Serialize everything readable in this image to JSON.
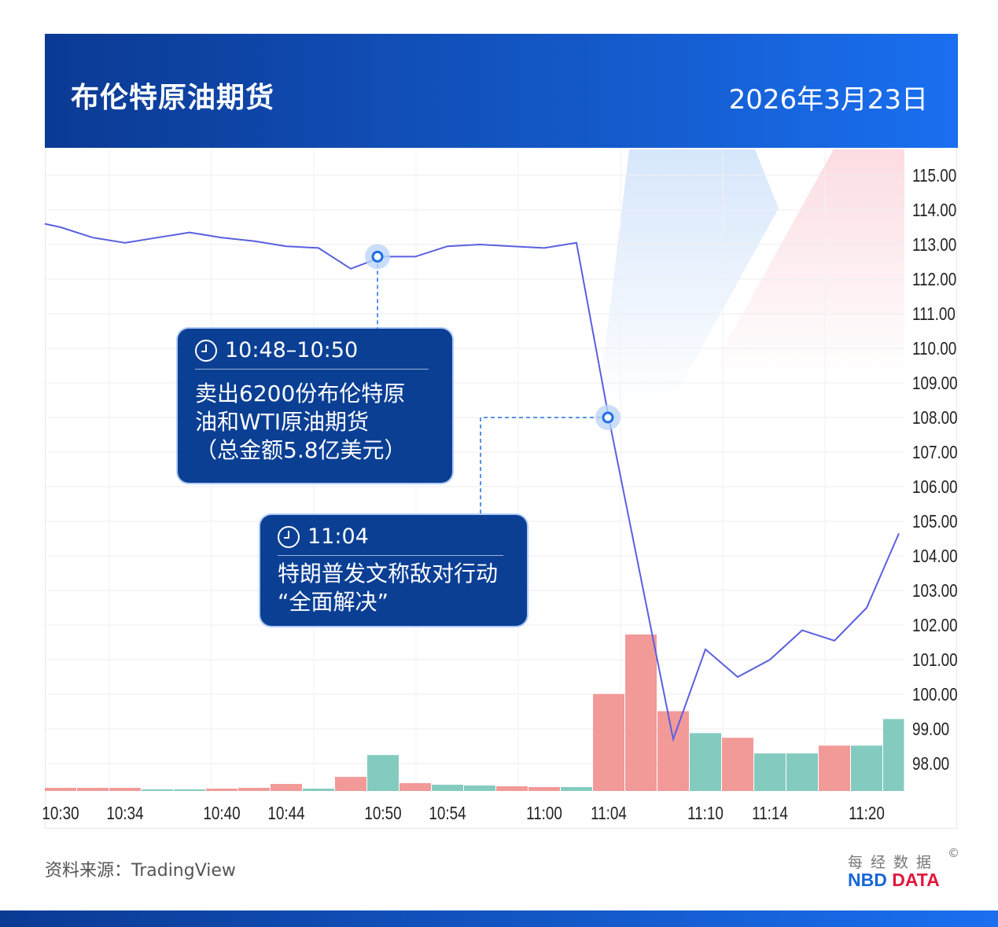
{
  "header": {
    "title": "布伦特原油期货",
    "date": "2026年3月23日"
  },
  "callouts": [
    {
      "time": "10:48–10:50",
      "text": "卖出6200份布伦特原\n油和WTI原油期货\n（总金额5.8亿美元）",
      "anchor": {
        "time": "10:50",
        "price": 112.65
      }
    },
    {
      "time": "11:04",
      "text": "特朗普发文称敌对行动\n“全面解决”",
      "anchor": {
        "time": "11:04",
        "price": 108.0
      }
    }
  ],
  "footer": {
    "source": "资料来源：TradingView",
    "brand_cn": "每经数据",
    "brand_en_1": "NBD",
    "brand_en_2": "DATA",
    "copyright": "©"
  },
  "colors": {
    "header": "#0b3a93",
    "line": "#5a5fe0",
    "up_bar": "#f29a98",
    "down_bar": "#84cbbf",
    "callout": "#0b3f94",
    "marker": "#1e6fe6"
  },
  "chart_data": {
    "type": "line",
    "title": "布伦特原油期货",
    "ylim": [
      97,
      115.5
    ],
    "y_ticks": [
      "115.00",
      "114.00",
      "113.00",
      "112.00",
      "111.00",
      "110.00",
      "109.00",
      "108.00",
      "107.00",
      "106.00",
      "105.00",
      "104.00",
      "103.00",
      "102.00",
      "101.00",
      "100.00",
      "99.00",
      "98.00"
    ],
    "x_ticks": [
      "10:30",
      "10:34",
      "10:40",
      "10:44",
      "10:50",
      "10:54",
      "11:00",
      "11:04",
      "11:10",
      "11:14",
      "11:20"
    ],
    "grid": true,
    "series": [
      {
        "type": "line",
        "x": [
          "10:29",
          "10:30",
          "10:32",
          "10:34",
          "10:36",
          "10:38",
          "10:40",
          "10:42",
          "10:44",
          "10:46",
          "10:48",
          "10:50",
          "10:52",
          "10:54",
          "10:56",
          "10:58",
          "11:00",
          "11:02",
          "11:04",
          "11:08",
          "11:10",
          "11:12",
          "11:14",
          "11:16",
          "11:18",
          "11:20",
          "11:22"
        ],
        "y": [
          113.6,
          113.5,
          113.2,
          113.05,
          113.2,
          113.35,
          113.2,
          113.1,
          112.95,
          112.9,
          112.3,
          112.65,
          112.65,
          112.95,
          113.0,
          112.95,
          112.9,
          113.05,
          108.0,
          98.7,
          101.3,
          100.5,
          101.0,
          101.85,
          101.55,
          102.5,
          104.65
        ]
      }
    ],
    "volume": {
      "unit": "relative (max=100)",
      "x": [
        "10:30",
        "10:32",
        "10:34",
        "10:36",
        "10:38",
        "10:40",
        "10:42",
        "10:44",
        "10:46",
        "10:48",
        "10:50",
        "10:52",
        "10:54",
        "10:56",
        "10:58",
        "11:00",
        "11:02",
        "11:04",
        "11:06",
        "11:08",
        "11:10",
        "11:12",
        "11:14",
        "11:16",
        "11:18",
        "11:20",
        "11:22"
      ],
      "values": [
        2,
        2,
        2,
        1,
        1,
        1.5,
        2,
        4.5,
        1.5,
        9,
        23,
        5,
        4,
        3.5,
        3,
        2.5,
        2.5,
        62,
        100,
        51,
        37,
        34,
        24,
        24,
        29,
        29,
        46
      ],
      "direction": [
        "up",
        "up",
        "up",
        "down",
        "down",
        "up",
        "up",
        "up",
        "down",
        "up",
        "down",
        "up",
        "down",
        "down",
        "up",
        "up",
        "down",
        "up",
        "up",
        "up",
        "down",
        "up",
        "down",
        "down",
        "up",
        "down",
        "down"
      ]
    }
  }
}
